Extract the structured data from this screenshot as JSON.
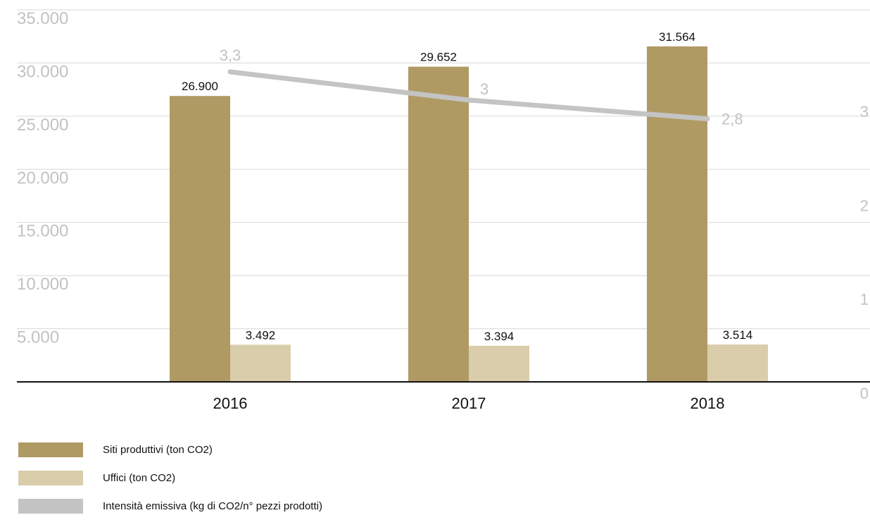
{
  "chart_data": {
    "type": "bar",
    "categories": [
      "2016",
      "2017",
      "2018"
    ],
    "series": [
      {
        "name": "Siti produttivi (ton CO2)",
        "values": [
          26900,
          29652,
          31564
        ],
        "labels": [
          "26.900",
          "29.652",
          "31.564"
        ],
        "color": "#B09A64"
      },
      {
        "name": "Uffici (ton CO2)",
        "values": [
          3492,
          3394,
          3514
        ],
        "labels": [
          "3.492",
          "3.394",
          "3.514"
        ],
        "color": "#D9CDAB"
      }
    ],
    "line_series": {
      "name": "Intensità emissiva (kg di CO2/n° pezzi prodotti)",
      "values": [
        3.3,
        3.0,
        2.8
      ],
      "labels": [
        "3,3",
        "3",
        "2,8"
      ],
      "color": "#C4C4C4",
      "axis": "right"
    },
    "y_left": {
      "ylim": [
        0,
        35000
      ],
      "ticks": [
        5000,
        10000,
        15000,
        20000,
        25000,
        30000,
        35000
      ],
      "tick_labels": [
        "5.000",
        "10.000",
        "15.000",
        "20.000",
        "25.000",
        "30.000",
        "35.000"
      ]
    },
    "y_right": {
      "ticks": [
        0,
        1,
        2,
        3
      ],
      "tick_labels": [
        "0",
        "1",
        "2",
        "3"
      ]
    },
    "grid": true,
    "legend_position": "bottom-left"
  }
}
